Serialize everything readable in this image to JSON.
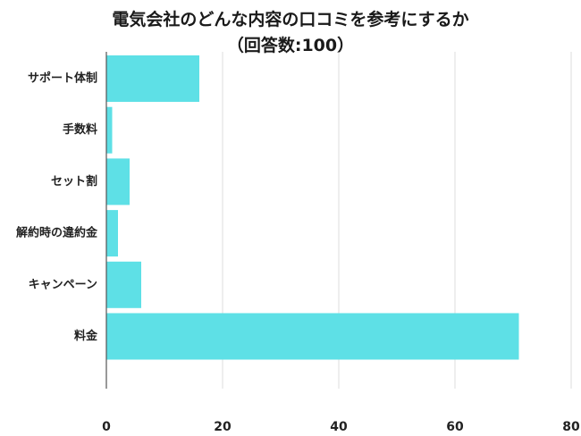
{
  "chart_data": {
    "type": "bar",
    "orientation": "horizontal",
    "title": "電気会社のどんな内容の口コミを参考にするか",
    "subtitle": "（回答数:100）",
    "categories": [
      "サポート体制",
      "手数料",
      "セット割",
      "解約時の違約金",
      "キャンペーン",
      "料金"
    ],
    "values": [
      16,
      1,
      4,
      2,
      6,
      71
    ],
    "xlim": [
      0,
      80
    ],
    "xticks": [
      "0",
      "20",
      "40",
      "60",
      "80"
    ],
    "grid": true,
    "bar_color": "#5ee0e6"
  }
}
